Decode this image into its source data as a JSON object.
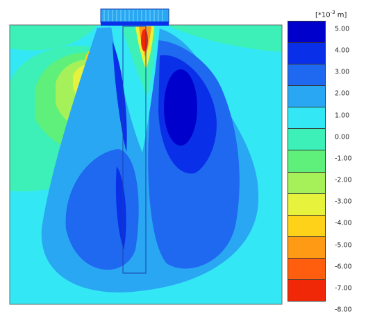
{
  "legend": {
    "unit_prefix": "[*10",
    "unit_exponent": "-3",
    "unit_suffix": " m]",
    "ticks": [
      "5.00",
      "4.00",
      "3.00",
      "2.00",
      "1.00",
      "0.00",
      "-1.00",
      "-2.00",
      "-3.00",
      "-4.00",
      "-5.00",
      "-6.00",
      "-7.00",
      "-8.00"
    ],
    "colors": [
      "#0000cc",
      "#0a2fe8",
      "#1f68f0",
      "#2aa7f2",
      "#33e8f4",
      "#3cf0b8",
      "#5ef07a",
      "#a6f05a",
      "#e6f23c",
      "#ffd21a",
      "#ff9a14",
      "#ff5e0e",
      "#f02808"
    ]
  },
  "colors": {
    "background_field": "#33e8f4",
    "pile_cap": "#2aa7f2",
    "outline": "#1a3fb0"
  }
}
